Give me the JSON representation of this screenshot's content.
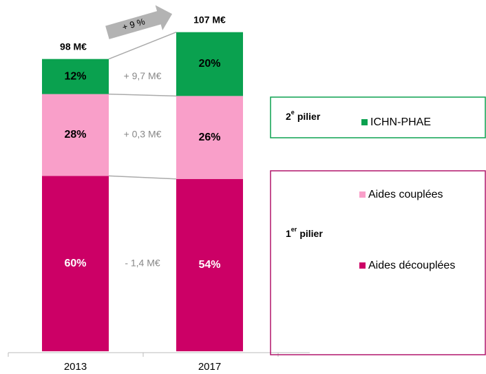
{
  "chart_data": {
    "type": "stacked-bar",
    "categories": [
      "2013",
      "2017"
    ],
    "series": [
      {
        "name": "Aides découplées",
        "color": "#cc0066",
        "label_color": "#ffffff",
        "values": [
          60,
          54
        ],
        "value_labels": [
          "60%",
          "54%"
        ]
      },
      {
        "name": "Aides couplées",
        "color": "#f99fc9",
        "label_color": "#000000",
        "values": [
          28,
          26
        ],
        "value_labels": [
          "28%",
          "26%"
        ]
      },
      {
        "name": "ICHN-PHAE",
        "color": "#0aa14f",
        "label_color": "#000000",
        "values": [
          12,
          20
        ],
        "value_labels": [
          "12%",
          "20%"
        ]
      }
    ],
    "totals": {
      "values": [
        98,
        107
      ],
      "value_labels": [
        "98 M€",
        "107 M€"
      ]
    },
    "deltas": {
      "values": [
        -1.4,
        0.3,
        9.7
      ],
      "value_labels": [
        "- 1,4 M€",
        "+ 0,3 M€",
        "+ 9,7 M€"
      ]
    },
    "growth": {
      "value": 9,
      "label": "+ 9 %"
    },
    "pillars": [
      {
        "number": "2",
        "suffix": "e",
        "word": "pilier",
        "color": "#0aa14f"
      },
      {
        "number": "1",
        "suffix": "er",
        "word": "pilier",
        "color": "#b0136a"
      }
    ]
  }
}
